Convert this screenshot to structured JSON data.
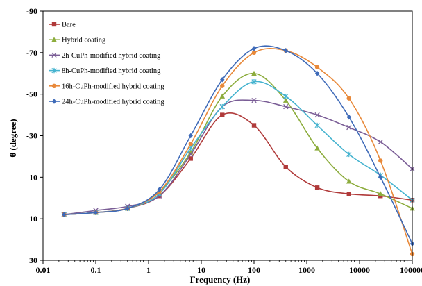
{
  "chart_data": {
    "type": "line",
    "xlabel": "Frequency (Hz)",
    "ylabel": "θ (degree)",
    "xscale": "log",
    "xlim": [
      0.01,
      100000
    ],
    "ylim": [
      30,
      -90
    ],
    "y_inverted": true,
    "grid": false,
    "legend_position": "top-left",
    "x_ticks": [
      0.01,
      0.1,
      1,
      10,
      100,
      1000,
      10000,
      100000
    ],
    "x_tick_labels": [
      "0.01",
      "0.1",
      "1",
      "10",
      "100",
      "1000",
      "10000",
      "100000"
    ],
    "y_ticks": [
      -90,
      -70,
      -50,
      -30,
      -10,
      10,
      30
    ],
    "y_tick_labels": [
      "-90",
      "-70",
      "-50",
      "-30",
      "-10",
      "10",
      "30"
    ],
    "series": [
      {
        "name": "Bare",
        "color": "#b03a3a",
        "marker": "square",
        "x": [
          0.025,
          0.1,
          0.4,
          1.6,
          6.3,
          25,
          100,
          400,
          1580,
          6300,
          25000,
          100000
        ],
        "y": [
          8,
          7,
          5,
          -1,
          -19,
          -40,
          -35,
          -15,
          -5,
          -2,
          -1,
          1
        ]
      },
      {
        "name": "Hybrid coating",
        "color": "#8cac3c",
        "marker": "triangle",
        "x": [
          0.025,
          0.1,
          0.4,
          1.6,
          6.3,
          25,
          100,
          400,
          1580,
          6300,
          25000,
          100000
        ],
        "y": [
          8,
          7,
          5,
          -3,
          -22,
          -49,
          -60,
          -47,
          -24,
          -8,
          -2,
          5
        ]
      },
      {
        "name": "2h-CuPh-modified hybrid coating",
        "color": "#7a5d96",
        "marker": "x",
        "x": [
          0.025,
          0.1,
          0.4,
          1.6,
          6.3,
          25,
          100,
          400,
          1580,
          6300,
          25000,
          100000
        ],
        "y": [
          8,
          6,
          4,
          -1,
          -21,
          -44,
          -47,
          -44,
          -40,
          -34,
          -27,
          -14
        ]
      },
      {
        "name": "8h-CuPh-modified hybrid coating",
        "color": "#45b3cf",
        "marker": "star",
        "x": [
          0.025,
          0.1,
          0.4,
          1.6,
          6.3,
          25,
          100,
          400,
          1580,
          6300,
          25000,
          100000
        ],
        "y": [
          8,
          7,
          5,
          -2,
          -24,
          -44,
          -56,
          -49,
          -35,
          -21,
          -11,
          1
        ]
      },
      {
        "name": "16h-CuPh-modified hybrid coating",
        "color": "#e8893a",
        "marker": "circle",
        "x": [
          0.025,
          0.1,
          0.4,
          1.6,
          6.3,
          25,
          100,
          400,
          1580,
          6300,
          25000,
          100000
        ],
        "y": [
          8,
          7,
          5,
          -3,
          -26,
          -54,
          -70,
          -71,
          -63,
          -48,
          -18,
          27
        ]
      },
      {
        "name": "24h-CuPh-modified hybrid coating",
        "color": "#3e6ab8",
        "marker": "diamond",
        "x": [
          0.025,
          0.1,
          0.4,
          1.6,
          6.3,
          25,
          100,
          400,
          1580,
          6300,
          25000,
          100000
        ],
        "y": [
          8,
          7,
          5,
          -4,
          -30,
          -57,
          -72,
          -71,
          -60,
          -39,
          -10,
          22
        ]
      }
    ]
  }
}
